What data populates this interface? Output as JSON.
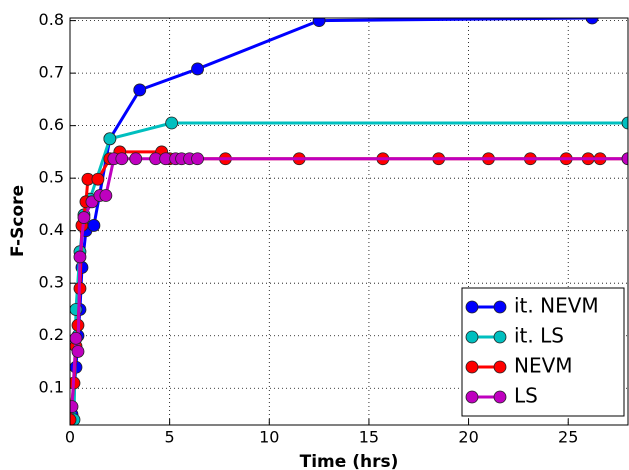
{
  "chart_data": {
    "type": "line",
    "x_label": "Time (hrs)",
    "y_label": "F-Score",
    "xlim": [
      0,
      28
    ],
    "ylim": [
      0.03,
      0.805
    ],
    "xticks": [
      0,
      5,
      10,
      15,
      20,
      25
    ],
    "yticks": [
      0.1,
      0.2,
      0.3,
      0.4,
      0.5,
      0.6,
      0.7,
      0.8
    ],
    "grid": true,
    "legend": "lower right",
    "series": [
      {
        "name": "it. NEVM",
        "color": "#0000ff",
        "x": [
          0,
          0.1,
          0.3,
          0.4,
          0.5,
          0.6,
          0.8,
          1.2,
          2,
          3.5,
          6.4,
          12.5,
          26.2
        ],
        "values": [
          0.03,
          0.05,
          0.14,
          0.2,
          0.25,
          0.33,
          0.4,
          0.41,
          0.575,
          0.668,
          0.708,
          0.8,
          0.805
        ]
      },
      {
        "name": "it. LS",
        "color": "#00bfbf",
        "x": [
          0,
          0.2,
          0.3,
          0.5,
          0.7,
          1,
          2,
          5.1,
          28
        ],
        "values": [
          0.035,
          0.04,
          0.25,
          0.36,
          0.43,
          0.46,
          0.575,
          0.605,
          0.605
        ]
      },
      {
        "name": "NEVM",
        "color": "#ff0000",
        "x": [
          0,
          0.2,
          0.3,
          0.4,
          0.5,
          0.6,
          0.8,
          0.9,
          1.4,
          2,
          2.5,
          4.6,
          5,
          7.8,
          11.5,
          15.7,
          18.5,
          21,
          23.1,
          24.9,
          26,
          26.6,
          28
        ],
        "values": [
          0.04,
          0.11,
          0.18,
          0.22,
          0.29,
          0.41,
          0.455,
          0.498,
          0.498,
          0.537,
          0.55,
          0.55,
          0.537,
          0.537,
          0.537,
          0.537,
          0.537,
          0.537,
          0.537,
          0.537,
          0.537,
          0.537,
          0.537
        ]
      },
      {
        "name": "LS",
        "color": "#bf00bf",
        "x": [
          0.1,
          0.3,
          0.4,
          0.5,
          0.7,
          1.1,
          1.5,
          1.8,
          2.2,
          2.6,
          3.3,
          4.3,
          4.8,
          5.3,
          5.6,
          6,
          6.4,
          28
        ],
        "values": [
          0.065,
          0.195,
          0.17,
          0.35,
          0.425,
          0.455,
          0.467,
          0.467,
          0.537,
          0.537,
          0.537,
          0.537,
          0.537,
          0.537,
          0.537,
          0.537,
          0.537,
          0.537
        ]
      }
    ]
  }
}
